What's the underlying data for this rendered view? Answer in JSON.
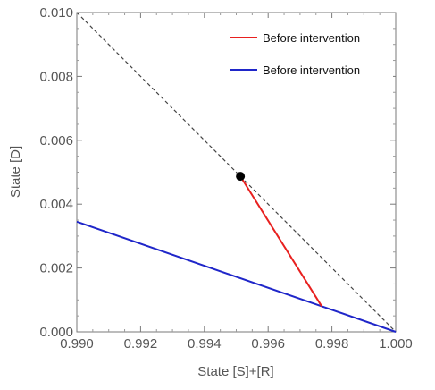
{
  "chart_data": {
    "type": "line",
    "xlabel": "State [S]+[R]",
    "ylabel": "State [D]",
    "xlim": [
      0.99,
      1.0
    ],
    "ylim": [
      0.0,
      0.01
    ],
    "x_ticks": [
      "0.990",
      "0.992",
      "0.994",
      "0.996",
      "0.998",
      "1.000"
    ],
    "y_ticks": [
      "0.000",
      "0.002",
      "0.004",
      "0.006",
      "0.008",
      "0.010"
    ],
    "grid": false,
    "legend_position": "top-right",
    "series": [
      {
        "name": "Before intervention",
        "color": "#e8201f",
        "style": "solid",
        "points": [
          [
            0.99513,
            0.00487
          ],
          [
            0.99768,
            0.0008
          ]
        ]
      },
      {
        "name": "Before intervention",
        "color": "#1f26c9",
        "style": "solid",
        "points": [
          [
            0.99,
            0.00345
          ],
          [
            1.0,
            0.0
          ]
        ]
      },
      {
        "name": "",
        "color": "#444444",
        "style": "dashed",
        "points": [
          [
            0.99,
            0.01
          ],
          [
            1.0,
            0.0
          ]
        ]
      }
    ],
    "markers": [
      {
        "x": 0.99513,
        "y": 0.00487,
        "color": "#000000"
      }
    ]
  }
}
